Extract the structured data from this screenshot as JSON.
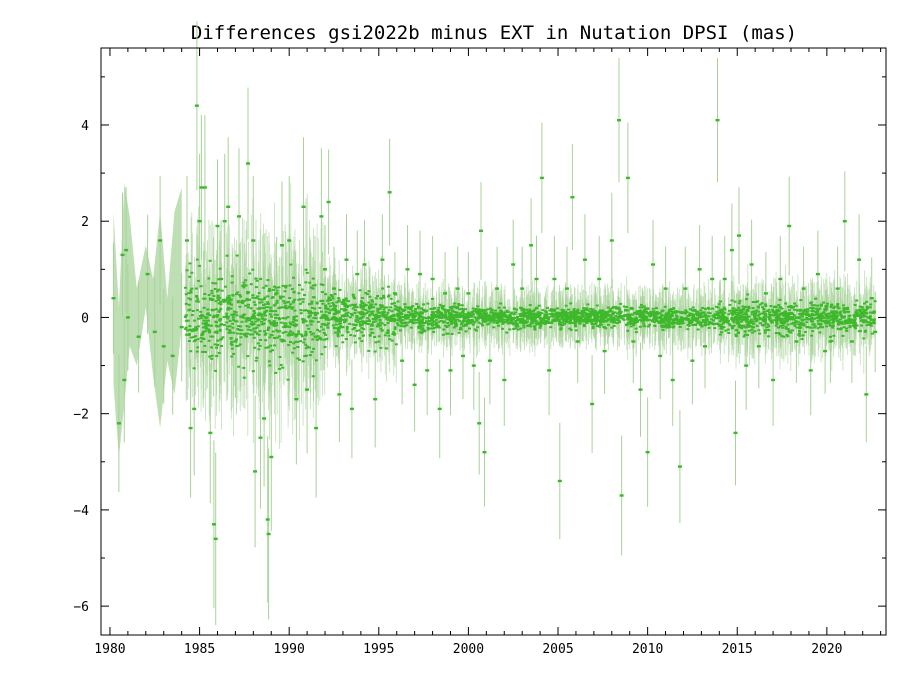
{
  "chart_data": {
    "type": "scatter",
    "title": "Differences gsi2022b minus EXT in Nutation DPSI (mas)",
    "xlabel": "",
    "ylabel": "",
    "xlim": [
      1979.5,
      2023.3
    ],
    "ylim": [
      -6.6,
      5.6
    ],
    "x_ticks": [
      1980,
      1985,
      1990,
      1995,
      2000,
      2005,
      2010,
      2015,
      2020
    ],
    "x_tick_labels": [
      "1980",
      "1985",
      "1990",
      "1995",
      "2000",
      "2005",
      "2010",
      "2015",
      "2020"
    ],
    "y_ticks": [
      -6,
      -4,
      -2,
      0,
      2,
      4
    ],
    "y_tick_labels": [
      "−6",
      "−4",
      "−2",
      "0",
      "2",
      "4"
    ],
    "grid": false,
    "legend": "none",
    "colors": {
      "points": "#3cb82a",
      "error_bars": "#a8d39a",
      "axes": "#000000"
    },
    "series": [
      {
        "points": [
          [
            1980.2,
            0.4
          ],
          [
            1980.5,
            -2.2
          ],
          [
            1980.7,
            1.3
          ],
          [
            1980.8,
            -1.3
          ],
          [
            1980.9,
            1.4
          ],
          [
            1981.0,
            0.0
          ],
          [
            1981.6,
            -0.4
          ],
          [
            1982.1,
            0.9
          ],
          [
            1982.5,
            -0.3
          ],
          [
            1982.8,
            1.6
          ],
          [
            1983.0,
            -0.6
          ],
          [
            1983.5,
            -0.8
          ],
          [
            1984.0,
            -0.2
          ],
          [
            1984.3,
            1.6
          ],
          [
            1984.5,
            -2.3
          ],
          [
            1984.7,
            -1.9
          ],
          [
            1984.85,
            4.4
          ],
          [
            1985.0,
            2.0
          ],
          [
            1985.1,
            2.7
          ],
          [
            1985.3,
            2.7
          ],
          [
            1985.6,
            -2.4
          ],
          [
            1985.8,
            -4.3
          ],
          [
            1985.9,
            -4.6
          ],
          [
            1986.0,
            1.9
          ],
          [
            1986.2,
            0.8
          ],
          [
            1986.4,
            2.0
          ],
          [
            1986.6,
            2.3
          ],
          [
            1987.0,
            -0.5
          ],
          [
            1987.2,
            2.1
          ],
          [
            1987.7,
            3.2
          ],
          [
            1988.0,
            1.6
          ],
          [
            1988.1,
            -3.2
          ],
          [
            1988.4,
            -2.5
          ],
          [
            1988.6,
            -2.1
          ],
          [
            1988.8,
            -4.2
          ],
          [
            1988.85,
            -4.5
          ],
          [
            1989.0,
            -2.9
          ],
          [
            1989.3,
            0.5
          ],
          [
            1989.6,
            1.5
          ],
          [
            1990.0,
            1.6
          ],
          [
            1990.4,
            -1.7
          ],
          [
            1990.8,
            2.3
          ],
          [
            1991.0,
            -1.5
          ],
          [
            1991.5,
            -2.3
          ],
          [
            1991.8,
            2.1
          ],
          [
            1992.0,
            1.0
          ],
          [
            1992.2,
            2.4
          ],
          [
            1992.5,
            0.6
          ],
          [
            1992.8,
            -1.6
          ],
          [
            1993.2,
            1.2
          ],
          [
            1993.5,
            -1.9
          ],
          [
            1993.8,
            0.9
          ],
          [
            1994.2,
            1.1
          ],
          [
            1994.5,
            0.2
          ],
          [
            1994.8,
            -1.7
          ],
          [
            1995.2,
            1.2
          ],
          [
            1995.6,
            2.6
          ],
          [
            1995.9,
            0.5
          ],
          [
            1996.3,
            -0.9
          ],
          [
            1996.6,
            1.0
          ],
          [
            1997.0,
            -1.4
          ],
          [
            1997.3,
            0.9
          ],
          [
            1997.7,
            -1.1
          ],
          [
            1998.0,
            0.8
          ],
          [
            1998.4,
            -1.9
          ],
          [
            1998.7,
            0.5
          ],
          [
            1999.0,
            -1.1
          ],
          [
            1999.4,
            0.6
          ],
          [
            1999.7,
            -0.8
          ],
          [
            2000.0,
            0.5
          ],
          [
            2000.3,
            -1.0
          ],
          [
            2000.6,
            -2.2
          ],
          [
            2000.7,
            1.8
          ],
          [
            2000.9,
            -2.8
          ],
          [
            2001.2,
            -0.9
          ],
          [
            2001.6,
            0.6
          ],
          [
            2002.0,
            -1.3
          ],
          [
            2002.5,
            1.1
          ],
          [
            2003.0,
            0.6
          ],
          [
            2003.5,
            1.5
          ],
          [
            2003.8,
            0.8
          ],
          [
            2004.1,
            2.9
          ],
          [
            2004.5,
            -1.1
          ],
          [
            2004.8,
            0.8
          ],
          [
            2005.1,
            -3.4
          ],
          [
            2005.5,
            0.6
          ],
          [
            2005.8,
            2.5
          ],
          [
            2006.1,
            -0.5
          ],
          [
            2006.5,
            1.2
          ],
          [
            2006.9,
            -1.8
          ],
          [
            2007.3,
            0.8
          ],
          [
            2007.6,
            -0.7
          ],
          [
            2008.0,
            1.6
          ],
          [
            2008.4,
            4.1
          ],
          [
            2008.55,
            -3.7
          ],
          [
            2008.9,
            2.9
          ],
          [
            2009.2,
            -0.5
          ],
          [
            2009.6,
            -1.5
          ],
          [
            2010.0,
            -2.8
          ],
          [
            2010.3,
            1.1
          ],
          [
            2010.7,
            -0.8
          ],
          [
            2011.0,
            0.6
          ],
          [
            2011.4,
            -1.3
          ],
          [
            2011.8,
            -3.1
          ],
          [
            2012.1,
            0.6
          ],
          [
            2012.5,
            -0.9
          ],
          [
            2012.9,
            1.0
          ],
          [
            2013.2,
            -0.6
          ],
          [
            2013.6,
            0.8
          ],
          [
            2013.9,
            4.1
          ],
          [
            2014.3,
            0.8
          ],
          [
            2014.7,
            1.4
          ],
          [
            2014.9,
            -2.4
          ],
          [
            2015.1,
            1.7
          ],
          [
            2015.5,
            -1.0
          ],
          [
            2015.8,
            1.1
          ],
          [
            2016.2,
            -0.6
          ],
          [
            2016.6,
            0.5
          ],
          [
            2017.0,
            -1.3
          ],
          [
            2017.4,
            0.8
          ],
          [
            2017.9,
            1.9
          ],
          [
            2018.3,
            -0.5
          ],
          [
            2018.7,
            0.6
          ],
          [
            2019.1,
            -1.1
          ],
          [
            2019.5,
            0.9
          ],
          [
            2019.9,
            -0.7
          ],
          [
            2020.2,
            -0.5
          ],
          [
            2020.6,
            0.6
          ],
          [
            2021.0,
            2.0
          ],
          [
            2021.4,
            -0.5
          ],
          [
            2021.8,
            1.2
          ],
          [
            2022.2,
            -1.6
          ],
          [
            2022.5,
            0.4
          ],
          [
            2022.7,
            -0.3
          ]
        ]
      }
    ]
  }
}
